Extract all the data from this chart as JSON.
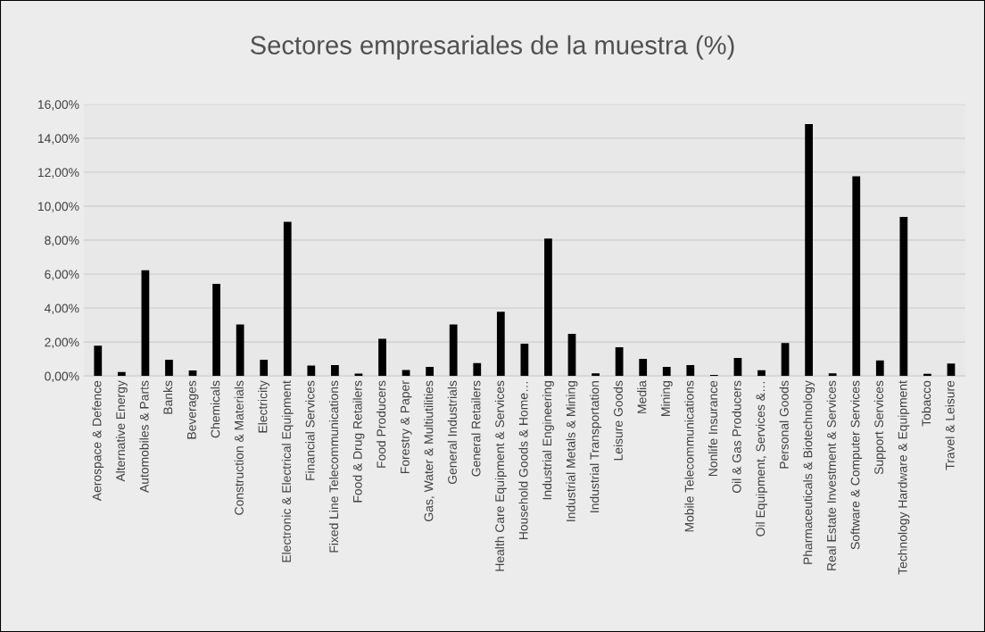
{
  "chart_data": {
    "type": "bar",
    "title": "Sectores empresariales de la muestra (%)",
    "categories": [
      "Aerospace & Defence",
      "Alternative Energy",
      "Automobiles & Parts",
      "Banks",
      "Beverages",
      "Chemicals",
      "Construction & Materials",
      "Electricity",
      "Electronic & Electrical Equipment",
      "Financial Services",
      "Fixed Line Telecommunications",
      "Food & Drug Retailers",
      "Food Producers",
      "Forestry & Paper",
      "Gas, Water & Multiutilities",
      "General Industrials",
      "General Retailers",
      "Health Care Equipment & Services",
      "Household Goods & Home…",
      "Industrial Engineering",
      "Industrial Metals & Mining",
      "Industrial Transportation",
      "Leisure Goods",
      "Media",
      "Mining",
      "Mobile Telecommunications",
      "Nonlife Insurance",
      "Oil & Gas Producers",
      "Oil Equipment, Services &…",
      "Personal Goods",
      "Pharmaceuticals & Biotechnology",
      "Real Estate Investment & Services",
      "Software & Computer Services",
      "Support Services",
      "Technology Hardware & Equipment",
      "Tobacco",
      "Travel & Leisure"
    ],
    "values": [
      1.79,
      0.24,
      6.23,
      0.96,
      0.33,
      5.43,
      3.03,
      0.96,
      9.08,
      0.62,
      0.65,
      0.14,
      2.19,
      0.36,
      0.54,
      3.03,
      0.76,
      3.79,
      1.9,
      8.1,
      2.48,
      0.16,
      1.7,
      1.01,
      0.54,
      0.65,
      0.07,
      1.07,
      0.34,
      1.94,
      14.84,
      0.16,
      11.76,
      0.92,
      9.37,
      0.13,
      0.74
    ],
    "color": "#000000",
    "ylim": [
      0,
      16
    ],
    "yticks": [
      {
        "value": 0,
        "label": "0,00%"
      },
      {
        "value": 2,
        "label": "2,00%"
      },
      {
        "value": 4,
        "label": "4,00%"
      },
      {
        "value": 6,
        "label": "6,00%"
      },
      {
        "value": 8,
        "label": "8,00%"
      },
      {
        "value": 10,
        "label": "10,00%"
      },
      {
        "value": 12,
        "label": "12,00%"
      },
      {
        "value": 14,
        "label": "14,00%"
      },
      {
        "value": 16,
        "label": "16,00%"
      }
    ],
    "grid": "y"
  }
}
